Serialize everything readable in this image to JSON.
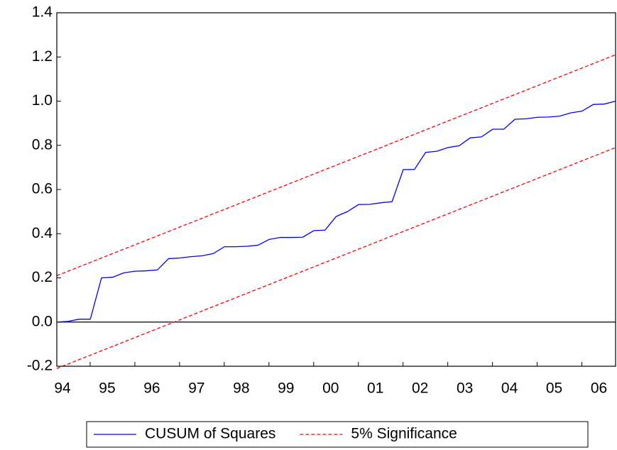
{
  "chart_data": {
    "type": "line",
    "categories": [
      "94",
      null,
      null,
      null,
      "95",
      null,
      null,
      null,
      "96",
      null,
      null,
      null,
      "97",
      null,
      null,
      null,
      "98",
      null,
      null,
      null,
      "99",
      null,
      null,
      null,
      "00",
      null,
      null,
      null,
      "01",
      null,
      null,
      null,
      "02",
      null,
      null,
      null,
      "03",
      null,
      null,
      null,
      "04",
      null,
      null,
      null,
      "05",
      null,
      null,
      null,
      "06",
      null,
      null
    ],
    "series": [
      {
        "name": "CUSUM of Squares",
        "color": "#0000ff",
        "dash": false,
        "values": [
          0.0,
          0.003,
          0.013,
          0.013,
          0.2,
          0.203,
          0.223,
          0.23,
          0.232,
          0.236,
          0.287,
          0.29,
          0.296,
          0.3,
          0.31,
          0.341,
          0.341,
          0.343,
          0.348,
          0.374,
          0.383,
          0.383,
          0.384,
          0.414,
          0.416,
          0.478,
          0.5,
          0.532,
          0.533,
          0.54,
          0.545,
          0.69,
          0.691,
          0.768,
          0.773,
          0.79,
          0.798,
          0.834,
          0.838,
          0.873,
          0.873,
          0.918,
          0.92,
          0.927,
          0.928,
          0.932,
          0.947,
          0.955,
          0.985,
          0.987,
          1.0
        ]
      },
      {
        "name": "5% Significance",
        "color": "#ff0000",
        "dash": true,
        "upper": [
          0.21,
          0.23,
          0.25,
          0.27,
          0.29,
          0.31,
          0.33,
          0.35,
          0.37,
          0.39,
          0.41,
          0.43,
          0.45,
          0.47,
          0.49,
          0.51,
          0.53,
          0.55,
          0.57,
          0.59,
          0.61,
          0.63,
          0.65,
          0.67,
          0.69,
          0.71,
          0.73,
          0.75,
          0.77,
          0.79,
          0.81,
          0.83,
          0.85,
          0.87,
          0.89,
          0.91,
          0.93,
          0.95,
          0.97,
          0.99,
          1.01,
          1.03,
          1.05,
          1.07,
          1.09,
          1.11,
          1.13,
          1.15,
          1.17,
          1.19,
          1.21
        ],
        "lower": [
          -0.21,
          -0.19,
          -0.17,
          -0.15,
          -0.13,
          -0.11,
          -0.09,
          -0.07,
          -0.05,
          -0.03,
          -0.01,
          0.01,
          0.03,
          0.05,
          0.07,
          0.09,
          0.11,
          0.13,
          0.15,
          0.17,
          0.19,
          0.21,
          0.23,
          0.25,
          0.27,
          0.29,
          0.31,
          0.33,
          0.35,
          0.37,
          0.39,
          0.41,
          0.43,
          0.45,
          0.47,
          0.49,
          0.51,
          0.53,
          0.55,
          0.57,
          0.59,
          0.61,
          0.63,
          0.65,
          0.67,
          0.69,
          0.71,
          0.73,
          0.75,
          0.77,
          0.79
        ]
      }
    ],
    "ylim": [
      -0.2,
      1.4
    ],
    "yticks": [
      -0.2,
      {
        "value": 0,
        "label": "0.0"
      },
      0.2,
      0.4,
      0.6,
      0.8,
      {
        "value": 1,
        "label": "1.0"
      },
      1.2,
      1.4
    ],
    "zero_line": true
  }
}
